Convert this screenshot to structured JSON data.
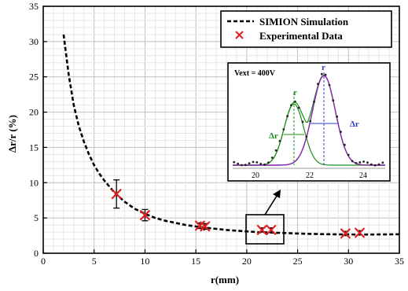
{
  "chart_data": {
    "type": "scatter",
    "xlabel": "r(mm)",
    "ylabel": "Δr/r (%)",
    "xlim": [
      0,
      35
    ],
    "ylim": [
      0,
      35
    ],
    "xticks": [
      "0",
      "5",
      "10",
      "15",
      "20",
      "25",
      "30",
      "35"
    ],
    "yticks": [
      "0",
      "5",
      "10",
      "15",
      "20",
      "25",
      "30",
      "35"
    ],
    "grid": true,
    "legend": {
      "position": "top-right",
      "entries": [
        "SIMION Simulation",
        "Experimental Data"
      ]
    },
    "series": [
      {
        "name": "SIMION Simulation",
        "style": "dashed-line",
        "x": [
          2.0,
          2.5,
          3.0,
          3.5,
          4.0,
          4.5,
          5.0,
          5.5,
          6.0,
          7.0,
          8.0,
          9.0,
          10.0,
          11.0,
          12.0,
          13.0,
          14.0,
          15.0,
          16.0,
          17.0,
          18.0,
          19.0,
          20.0,
          21.0,
          22.0,
          23.0,
          24.0,
          25.0,
          26.0,
          27.0,
          28.0,
          29.0,
          30.0,
          31.0,
          32.0,
          33.0,
          34.0,
          35.0
        ],
        "y": [
          31.0,
          25.3,
          21.0,
          18.0,
          15.8,
          14.0,
          12.5,
          11.3,
          10.3,
          8.6,
          7.3,
          6.3,
          5.6,
          5.0,
          4.6,
          4.3,
          4.0,
          3.8,
          3.6,
          3.45,
          3.3,
          3.2,
          3.1,
          3.0,
          2.95,
          2.9,
          2.85,
          2.8,
          2.75,
          2.72,
          2.7,
          2.68,
          2.66,
          2.65,
          2.65,
          2.66,
          2.68,
          2.7
        ]
      },
      {
        "name": "Experimental Data",
        "style": "x-marker",
        "x": [
          7.2,
          10.0,
          15.4,
          15.9,
          21.5,
          22.4,
          29.7,
          31.1
        ],
        "y": [
          8.4,
          5.4,
          3.9,
          3.8,
          3.3,
          3.3,
          2.8,
          2.9
        ],
        "yerr": [
          2.0,
          0.8,
          0.4,
          0.4,
          0.3,
          0.3,
          0.3,
          0.3
        ]
      }
    ],
    "inset": {
      "label": "Vext = 400V",
      "xlim": [
        19.2,
        24.8
      ],
      "xticks": [
        "20",
        "22",
        "24"
      ],
      "peak_labels": [
        "r",
        "r"
      ],
      "width_labels": [
        "Δr",
        "Δr"
      ],
      "colors": {
        "peak1": "#1a8f1a",
        "peak2": "#8e2aa8",
        "line1": "#4169e1",
        "fit1": "#1a8f1a",
        "fit2": "#2a3fd0",
        "sum": "#c43b2c"
      }
    },
    "colors": {
      "simulation": "#000000",
      "markers": "#e02020",
      "errorbars": "#000000"
    }
  }
}
